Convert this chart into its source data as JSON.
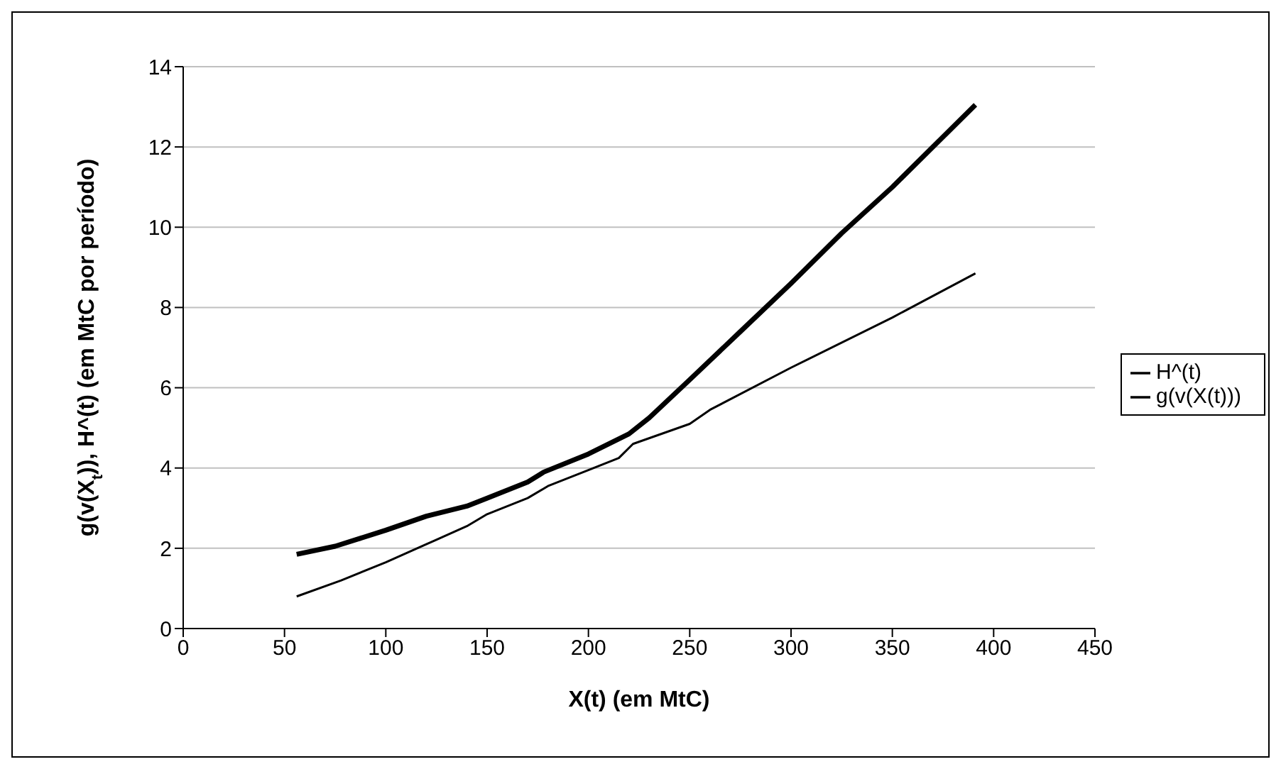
{
  "chart_data": {
    "type": "line",
    "xlabel": "X(t) (em MtC)",
    "ylabel": "g(v(X$_{t}$)), H^(t) (em MtC por período)",
    "xlim": [
      0,
      450
    ],
    "xticks": [
      0,
      50,
      100,
      150,
      200,
      250,
      300,
      350,
      400,
      450
    ],
    "ylim": [
      0,
      14
    ],
    "yticks": [
      0,
      2,
      4,
      6,
      8,
      10,
      12,
      14
    ],
    "grid": "y",
    "legend": "right",
    "marker": "none",
    "line_style": "solid",
    "series": [
      {
        "name": "g(v(X(t)))",
        "color": "#000000",
        "x": [
          56,
          75,
          100,
          120,
          140,
          150,
          170,
          178,
          200,
          220,
          230,
          250,
          275,
          300,
          325,
          350,
          372,
          391
        ],
        "values": [
          1.85,
          2.05,
          2.45,
          2.8,
          3.05,
          3.25,
          3.65,
          3.9,
          4.35,
          4.85,
          5.25,
          6.2,
          7.4,
          8.6,
          9.85,
          11.0,
          12.1,
          13.05
        ]
      },
      {
        "name": "H^(t)",
        "color": "#000000",
        "x": [
          56,
          78,
          100,
          120,
          140,
          150,
          170,
          180,
          200,
          215,
          222,
          250,
          260,
          300,
          350,
          391
        ],
        "values": [
          0.8,
          1.2,
          1.65,
          2.1,
          2.55,
          2.85,
          3.25,
          3.55,
          3.95,
          4.25,
          4.6,
          5.1,
          5.45,
          6.5,
          7.75,
          8.85
        ]
      }
    ]
  }
}
